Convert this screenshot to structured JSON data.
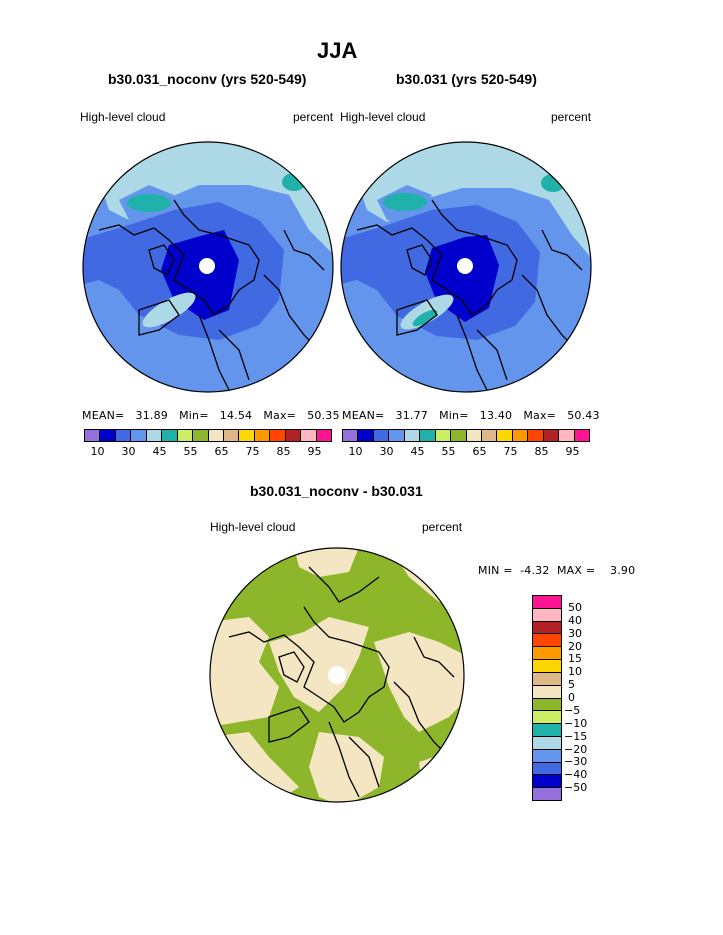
{
  "page": {
    "season": "JJA",
    "diff_title": "b30.031_noconv - b30.031"
  },
  "panels": [
    {
      "title": "b30.031_noconv (yrs 520-549)",
      "field": "High-level cloud",
      "units": "percent",
      "stats": {
        "mean_label": "MEAN=",
        "mean": "31.89",
        "min_label": "Min=",
        "min": "14.54",
        "max_label": "Max=",
        "max": "50.35"
      }
    },
    {
      "title": "b30.031 (yrs 520-549)",
      "field": "High-level cloud",
      "units": "percent",
      "stats": {
        "mean_label": "MEAN=",
        "mean": "31.77",
        "min_label": "Min=",
        "min": "13.40",
        "max_label": "Max=",
        "max": "50.43"
      }
    }
  ],
  "abs_colorbar": {
    "colors": [
      "#9370db",
      "#0000cd",
      "#4169e1",
      "#6495ed",
      "#add8e6",
      "#20b2aa",
      "#ccee66",
      "#8db62b",
      "#f5e6c3",
      "#deb887",
      "#ffd700",
      "#ff9900",
      "#ff4500",
      "#b22222",
      "#ffb6c1",
      "#ff1493"
    ],
    "labels": [
      "10",
      "30",
      "45",
      "55",
      "65",
      "75",
      "85",
      "95"
    ]
  },
  "diff_panel": {
    "field": "High-level cloud",
    "units": "percent",
    "min_label": "MIN =",
    "min": "-4.32",
    "max_label": "MAX =",
    "max": "3.90"
  },
  "diff_colorbar": {
    "colors": [
      "#ff1493",
      "#ffb6c1",
      "#b22222",
      "#ff4500",
      "#ff9900",
      "#ffd700",
      "#deb887",
      "#f5e6c3",
      "#8db62b",
      "#ccee66",
      "#20b2aa",
      "#add8e6",
      "#6495ed",
      "#4169e1",
      "#0000cd",
      "#9370db"
    ],
    "labels": [
      "50",
      "40",
      "30",
      "20",
      "15",
      "10",
      "5",
      "0",
      "−5",
      "−10",
      "−15",
      "−20",
      "−30",
      "−40",
      "−50"
    ]
  }
}
